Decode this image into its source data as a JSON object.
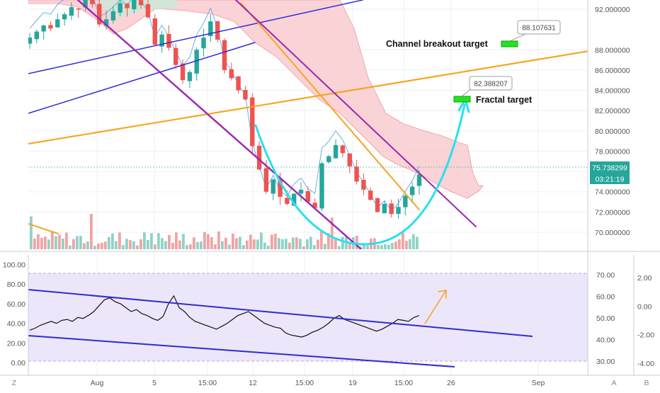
{
  "annotations": {
    "channel_breakout_label": "Channel breakout target",
    "channel_breakout_value": "88.107631",
    "fractal_label": "Fractal target",
    "fractal_value": "82.388207"
  },
  "price_tag": {
    "value": "75.738299",
    "timer": "03:21:19"
  },
  "left_axis_labels": [
    "100.00",
    "80.00",
    "60.00",
    "40.00",
    "20.00",
    "0.00"
  ],
  "corner_buttons": {
    "left": "Z",
    "axis_a": "A",
    "axis_b": "B"
  },
  "colors": {
    "up": "#26a69a",
    "down": "#ef5350",
    "cloud": "#f8c8cc",
    "purple": "#9c27b0",
    "orange": "#f5a623",
    "navy": "#2f2bd6",
    "cyan": "#29e0ef",
    "rsi_band": "#ece6fb",
    "target_box": "#22e41e"
  },
  "chart_data": [
    {
      "type": "candlestick",
      "title": "",
      "x": {
        "tick_labels": [
          "Aug",
          "5",
          "15:00",
          "12",
          "15:00",
          "19",
          "15:00",
          "26",
          "Sep"
        ]
      },
      "y": {
        "tick_labels": [
          "92.000000",
          "88.000000",
          "86.000000",
          "84.000000",
          "82.000000",
          "80.000000",
          "78.000000",
          "76.000000",
          "74.000000",
          "72.000000",
          "70.000000"
        ],
        "range": [
          68.5,
          93
        ]
      },
      "last_price": 75.738299,
      "targets": [
        {
          "label": "Channel breakout target",
          "value": 88.107631
        },
        {
          "label": "Fractal target",
          "value": 82.388207
        }
      ],
      "approx_closes": [
        89.2,
        89.8,
        90.4,
        90.1,
        91.0,
        91.5,
        92.2,
        92.0,
        93.0,
        92.5,
        90.5,
        91.0,
        91.8,
        92.6,
        92.1,
        93.0,
        92.4,
        91.2,
        88.5,
        89.5,
        88.2,
        86.5,
        85.0,
        85.8,
        88.0,
        89.2,
        90.8,
        89.0,
        86.0,
        85.2,
        84.0,
        83.1,
        78.5,
        76.2,
        74.0,
        75.2,
        73.5,
        72.8,
        73.8,
        74.2,
        73.0,
        72.4,
        76.8,
        77.5,
        78.6,
        77.8,
        76.5,
        75.0,
        74.2,
        73.2,
        72.0,
        72.8,
        71.8,
        72.5,
        73.6,
        74.5,
        75.7
      ]
    },
    {
      "type": "line",
      "title": "",
      "series": [
        {
          "values": [
            33,
            35,
            38,
            40,
            42,
            40,
            43,
            44,
            42,
            46,
            45,
            48,
            52,
            58,
            64,
            66,
            62,
            60,
            56,
            52,
            54,
            50,
            48,
            45,
            43,
            47,
            60,
            68,
            56,
            52,
            46,
            42,
            40,
            38,
            36,
            34,
            37,
            40,
            44,
            48,
            50,
            52,
            48,
            44,
            40,
            38,
            36,
            35,
            30,
            28,
            27,
            26,
            28,
            31,
            33,
            36,
            40,
            45,
            48,
            44,
            42,
            40,
            38,
            36,
            34,
            32,
            34,
            37,
            40,
            44,
            43,
            42,
            46,
            48
          ]
        }
      ],
      "left_axis": {
        "tick_labels": [
          "100.00",
          "80.00",
          "60.00",
          "40.00",
          "20.00",
          "0.00"
        ],
        "range": [
          0,
          100
        ]
      },
      "right_axis": {
        "tick_labels": [
          "70.00",
          "60.00",
          "50.00",
          "40.00",
          "30.00"
        ]
      },
      "far_right_axis": {
        "tick_labels": [
          "2.00",
          "0.00",
          "-2.00",
          "-4.00"
        ]
      }
    }
  ]
}
